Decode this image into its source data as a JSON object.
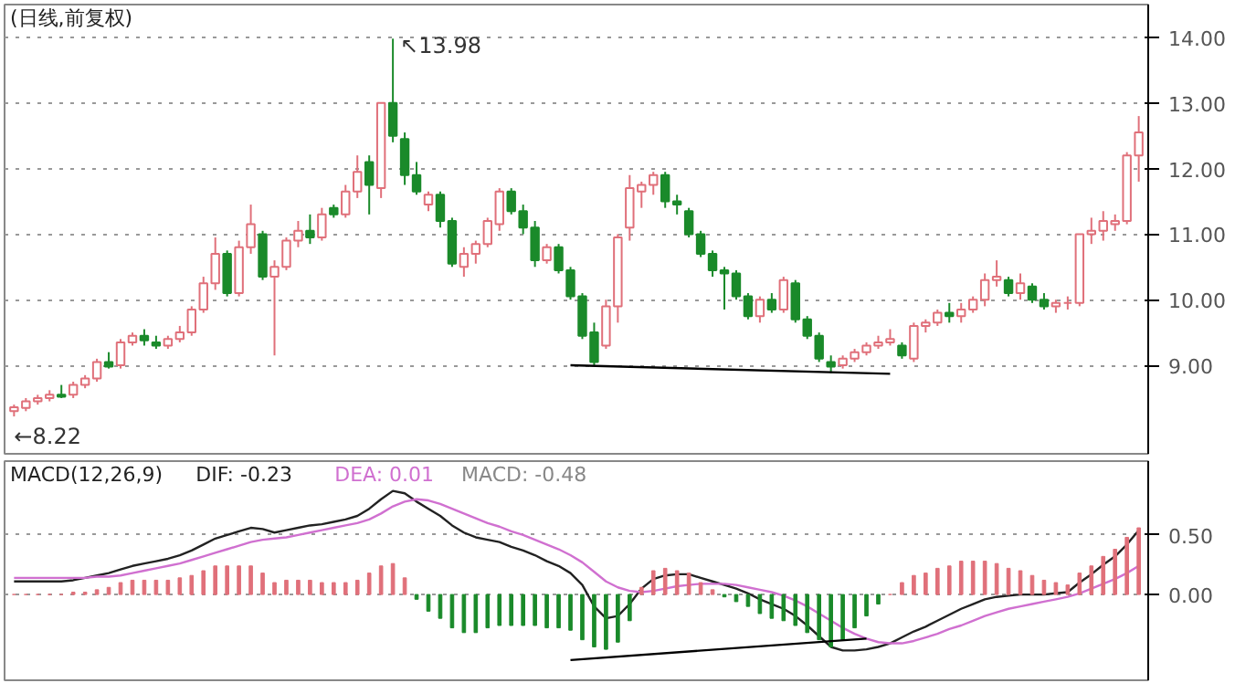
{
  "chart_data": [
    {
      "type": "candlestick",
      "title": "(日线,前复权)",
      "categories": [
        null,
        null,
        null,
        null,
        null,
        null,
        null,
        null,
        null,
        null,
        null,
        null,
        null,
        null,
        null,
        null,
        null,
        null,
        null,
        null,
        null,
        null,
        null,
        null,
        null,
        null,
        null,
        null,
        null,
        null,
        null,
        null,
        null,
        null,
        null,
        null,
        null,
        null,
        null,
        null,
        null,
        null,
        null,
        null,
        null,
        null,
        null,
        null,
        null,
        null,
        null,
        null,
        null,
        null,
        null,
        null,
        null,
        null,
        null,
        null,
        null,
        null,
        null,
        null,
        null,
        null,
        null,
        null,
        null,
        null,
        null,
        null,
        null,
        null,
        null,
        null,
        null,
        null,
        null,
        null,
        null,
        null,
        null,
        null,
        null,
        null,
        null,
        null,
        null,
        null,
        null,
        null,
        null,
        null,
        null,
        null
      ],
      "ohlc": [
        [
          8.3,
          8.4,
          8.22,
          8.36
        ],
        [
          8.35,
          8.5,
          8.3,
          8.45
        ],
        [
          8.45,
          8.55,
          8.4,
          8.5
        ],
        [
          8.5,
          8.62,
          8.45,
          8.55
        ],
        [
          8.55,
          8.7,
          8.5,
          8.52
        ],
        [
          8.55,
          8.75,
          8.5,
          8.7
        ],
        [
          8.7,
          8.85,
          8.65,
          8.8
        ],
        [
          8.8,
          9.1,
          8.75,
          9.05
        ],
        [
          9.05,
          9.2,
          8.95,
          8.98
        ],
        [
          9.0,
          9.4,
          8.95,
          9.35
        ],
        [
          9.35,
          9.5,
          9.3,
          9.45
        ],
        [
          9.45,
          9.55,
          9.3,
          9.38
        ],
        [
          9.35,
          9.45,
          9.25,
          9.3
        ],
        [
          9.3,
          9.45,
          9.25,
          9.4
        ],
        [
          9.4,
          9.6,
          9.35,
          9.5
        ],
        [
          9.5,
          9.9,
          9.45,
          9.85
        ],
        [
          9.85,
          10.35,
          9.8,
          10.25
        ],
        [
          10.25,
          10.95,
          10.15,
          10.7
        ],
        [
          10.7,
          10.75,
          10.05,
          10.1
        ],
        [
          10.1,
          10.9,
          10.05,
          10.8
        ],
        [
          10.8,
          11.45,
          10.7,
          11.15
        ],
        [
          11.0,
          11.05,
          10.3,
          10.35
        ],
        [
          10.35,
          10.6,
          9.15,
          10.5
        ],
        [
          10.5,
          10.95,
          10.45,
          10.9
        ],
        [
          10.9,
          11.2,
          10.8,
          11.05
        ],
        [
          11.05,
          11.3,
          10.85,
          10.95
        ],
        [
          10.95,
          11.4,
          10.9,
          11.3
        ],
        [
          11.4,
          11.45,
          11.25,
          11.3
        ],
        [
          11.3,
          11.75,
          11.25,
          11.65
        ],
        [
          11.65,
          12.2,
          11.55,
          11.95
        ],
        [
          12.1,
          12.2,
          11.3,
          11.75
        ],
        [
          11.7,
          13.0,
          11.55,
          13.0
        ],
        [
          13.0,
          13.98,
          12.4,
          12.5
        ],
        [
          12.45,
          12.55,
          11.75,
          11.9
        ],
        [
          11.9,
          12.1,
          11.6,
          11.65
        ],
        [
          11.45,
          11.65,
          11.35,
          11.6
        ],
        [
          11.6,
          11.65,
          11.1,
          11.2
        ],
        [
          11.2,
          11.25,
          10.5,
          10.55
        ],
        [
          10.5,
          10.8,
          10.35,
          10.7
        ],
        [
          10.7,
          10.9,
          10.55,
          10.85
        ],
        [
          10.85,
          11.25,
          10.8,
          11.2
        ],
        [
          11.15,
          11.7,
          11.05,
          11.65
        ],
        [
          11.65,
          11.7,
          11.3,
          11.35
        ],
        [
          11.35,
          11.45,
          11.0,
          11.1
        ],
        [
          11.1,
          11.2,
          10.5,
          10.6
        ],
        [
          10.6,
          10.85,
          10.55,
          10.8
        ],
        [
          10.8,
          10.85,
          10.4,
          10.45
        ],
        [
          10.45,
          10.5,
          10.0,
          10.05
        ],
        [
          10.05,
          10.1,
          9.4,
          9.45
        ],
        [
          9.5,
          9.65,
          9.0,
          9.05
        ],
        [
          9.3,
          10.0,
          9.25,
          9.9
        ],
        [
          9.9,
          11.0,
          9.65,
          10.95
        ],
        [
          11.1,
          11.9,
          10.9,
          11.7
        ],
        [
          11.65,
          11.8,
          11.4,
          11.75
        ],
        [
          11.75,
          11.95,
          11.6,
          11.9
        ],
        [
          11.9,
          11.95,
          11.4,
          11.5
        ],
        [
          11.5,
          11.6,
          11.3,
          11.45
        ],
        [
          11.35,
          11.4,
          10.95,
          11.0
        ],
        [
          11.0,
          11.05,
          10.65,
          10.7
        ],
        [
          10.7,
          10.75,
          10.35,
          10.45
        ],
        [
          10.45,
          10.5,
          9.85,
          10.4
        ],
        [
          10.4,
          10.45,
          10.0,
          10.05
        ],
        [
          10.05,
          10.1,
          9.7,
          9.75
        ],
        [
          9.75,
          10.05,
          9.65,
          10.0
        ],
        [
          10.0,
          10.1,
          9.8,
          9.85
        ],
        [
          9.85,
          10.35,
          9.8,
          10.3
        ],
        [
          10.25,
          10.3,
          9.65,
          9.7
        ],
        [
          9.7,
          9.75,
          9.4,
          9.45
        ],
        [
          9.45,
          9.5,
          9.05,
          9.1
        ],
        [
          9.05,
          9.15,
          8.88,
          8.98
        ],
        [
          9.0,
          9.15,
          8.95,
          9.1
        ],
        [
          9.1,
          9.25,
          9.05,
          9.2
        ],
        [
          9.2,
          9.35,
          9.15,
          9.3
        ],
        [
          9.3,
          9.45,
          9.25,
          9.35
        ],
        [
          9.35,
          9.55,
          9.3,
          9.4
        ],
        [
          9.3,
          9.35,
          9.1,
          9.15
        ],
        [
          9.1,
          9.65,
          9.05,
          9.6
        ],
        [
          9.6,
          9.7,
          9.5,
          9.65
        ],
        [
          9.65,
          9.85,
          9.6,
          9.8
        ],
        [
          9.8,
          9.95,
          9.65,
          9.75
        ],
        [
          9.75,
          9.95,
          9.65,
          9.85
        ],
        [
          9.85,
          10.05,
          9.8,
          10.0
        ],
        [
          10.0,
          10.4,
          9.9,
          10.3
        ],
        [
          10.3,
          10.6,
          10.2,
          10.35
        ],
        [
          10.3,
          10.35,
          10.05,
          10.1
        ],
        [
          10.1,
          10.4,
          10.0,
          10.25
        ],
        [
          10.2,
          10.25,
          9.95,
          10.0
        ],
        [
          10.0,
          10.1,
          9.85,
          9.9
        ],
        [
          9.9,
          10.0,
          9.8,
          9.95
        ],
        [
          9.95,
          10.05,
          9.85,
          9.95
        ],
        [
          9.95,
          11.0,
          9.9,
          11.0
        ],
        [
          11.0,
          11.25,
          10.85,
          11.05
        ],
        [
          11.05,
          11.35,
          10.9,
          11.2
        ],
        [
          11.15,
          11.3,
          11.05,
          11.2
        ],
        [
          11.2,
          12.25,
          11.15,
          12.2
        ],
        [
          12.2,
          12.8,
          11.8,
          12.55
        ]
      ],
      "series": [
        {
          "type": "line",
          "values": [
            null,
            null,
            null,
            null,
            null,
            null,
            null,
            null,
            null,
            null,
            null,
            null,
            null,
            null,
            null,
            null,
            null,
            null,
            null,
            null,
            null,
            null,
            null,
            null,
            null,
            null,
            null,
            null,
            null,
            null,
            null,
            null,
            null,
            null,
            null,
            null,
            null,
            null,
            null,
            null,
            null,
            null,
            null,
            null,
            null,
            null,
            null,
            9.0,
            null,
            null,
            null,
            null,
            null,
            null,
            null,
            null,
            null,
            null,
            null,
            null,
            null,
            null,
            null,
            null,
            null,
            null,
            null,
            null,
            null,
            null,
            null,
            null,
            null,
            null,
            8.87,
            null,
            null,
            null,
            null,
            null,
            null,
            null,
            null,
            null,
            null,
            null,
            null,
            null,
            null,
            null,
            null,
            null,
            null,
            null,
            null,
            null
          ],
          "color": "#000000"
        }
      ],
      "ylim": [
        7.65,
        14.5
      ],
      "yticks": [
        {
          "value": 9,
          "label": "9.00"
        },
        {
          "value": 10,
          "label": "10.00"
        },
        {
          "value": 11,
          "label": "11.00"
        },
        {
          "value": 12,
          "label": "12.00"
        },
        {
          "value": 13,
          "label": "13.00"
        },
        {
          "value": 14,
          "label": "14.00"
        }
      ],
      "grid": "y",
      "annotations": [
        "↖13.98",
        "←8.22"
      ]
    },
    {
      "type": "line",
      "title": "MACD(12,26,9)",
      "categories": [
        null,
        null,
        null,
        null,
        null,
        null,
        null,
        null,
        null,
        null,
        null,
        null,
        null,
        null,
        null,
        null,
        null,
        null,
        null,
        null,
        null,
        null,
        null,
        null,
        null,
        null,
        null,
        null,
        null,
        null,
        null,
        null,
        null,
        null,
        null,
        null,
        null,
        null,
        null,
        null,
        null,
        null,
        null,
        null,
        null,
        null,
        null,
        null,
        null,
        null,
        null,
        null,
        null,
        null,
        null,
        null,
        null,
        null,
        null,
        null,
        null,
        null,
        null,
        null,
        null,
        null,
        null,
        null,
        null,
        null,
        null,
        null,
        null,
        null,
        null,
        null,
        null,
        null,
        null,
        null,
        null,
        null,
        null,
        null,
        null,
        null,
        null,
        null,
        null,
        null,
        null,
        null,
        null,
        null,
        null,
        null
      ],
      "series": [
        {
          "name": "DIF: -0.23",
          "color": "#222222",
          "values": [
            0.11,
            0.11,
            0.11,
            0.11,
            0.11,
            0.12,
            0.14,
            0.16,
            0.18,
            0.21,
            0.24,
            0.26,
            0.28,
            0.3,
            0.33,
            0.37,
            0.42,
            0.47,
            0.5,
            0.53,
            0.56,
            0.55,
            0.52,
            0.54,
            0.56,
            0.58,
            0.59,
            0.61,
            0.63,
            0.66,
            0.72,
            0.8,
            0.87,
            0.85,
            0.78,
            0.72,
            0.66,
            0.58,
            0.52,
            0.48,
            0.46,
            0.44,
            0.4,
            0.37,
            0.33,
            0.28,
            0.24,
            0.18,
            0.08,
            -0.1,
            -0.2,
            -0.18,
            -0.08,
            0.05,
            0.13,
            0.16,
            0.17,
            0.17,
            0.14,
            0.11,
            0.08,
            0.05,
            0.01,
            -0.04,
            -0.08,
            -0.12,
            -0.18,
            -0.26,
            -0.35,
            -0.44,
            -0.47,
            -0.47,
            -0.46,
            -0.44,
            -0.41,
            -0.36,
            -0.31,
            -0.27,
            -0.22,
            -0.17,
            -0.12,
            -0.08,
            -0.04,
            -0.02,
            -0.01,
            0.0,
            0.0,
            0.0,
            0.01,
            0.02,
            0.1,
            0.17,
            0.25,
            0.32,
            0.42,
            0.54
          ]
        },
        {
          "name": "DEA: 0.01",
          "color": "#d070d0",
          "values": [
            0.14,
            0.14,
            0.14,
            0.14,
            0.14,
            0.14,
            0.14,
            0.15,
            0.15,
            0.16,
            0.18,
            0.2,
            0.22,
            0.24,
            0.26,
            0.29,
            0.32,
            0.35,
            0.38,
            0.41,
            0.44,
            0.46,
            0.47,
            0.48,
            0.5,
            0.52,
            0.54,
            0.56,
            0.58,
            0.6,
            0.63,
            0.68,
            0.74,
            0.78,
            0.8,
            0.79,
            0.76,
            0.72,
            0.68,
            0.64,
            0.6,
            0.57,
            0.53,
            0.5,
            0.46,
            0.42,
            0.38,
            0.33,
            0.27,
            0.19,
            0.11,
            0.06,
            0.03,
            0.02,
            0.03,
            0.05,
            0.07,
            0.08,
            0.09,
            0.09,
            0.09,
            0.08,
            0.06,
            0.04,
            0.02,
            -0.01,
            -0.05,
            -0.1,
            -0.16,
            -0.22,
            -0.28,
            -0.33,
            -0.37,
            -0.4,
            -0.41,
            -0.41,
            -0.39,
            -0.36,
            -0.33,
            -0.29,
            -0.26,
            -0.22,
            -0.18,
            -0.15,
            -0.12,
            -0.1,
            -0.08,
            -0.06,
            -0.04,
            -0.02,
            0.01,
            0.05,
            0.09,
            0.13,
            0.18,
            0.24
          ]
        },
        {
          "type": "bar",
          "colors": [
            "#e0707a",
            "#e0707a",
            "#e0707a",
            "#e0707a",
            "#e0707a",
            "#e0707a",
            "#e0707a",
            "#e0707a",
            "#e0707a",
            "#e0707a",
            "#e0707a",
            "#e0707a",
            "#e0707a",
            "#e0707a",
            "#e0707a",
            "#e0707a",
            "#e0707a",
            "#e0707a",
            "#e0707a",
            "#e0707a",
            "#e0707a",
            "#e0707a",
            "#e0707a",
            "#e0707a",
            "#e0707a",
            "#e0707a",
            "#e0707a",
            "#e0707a",
            "#e0707a",
            "#e0707a",
            "#e0707a",
            "#e0707a",
            "#e0707a",
            "#e0707a",
            "#1a8a2a",
            "#1a8a2a",
            "#1a8a2a",
            "#1a8a2a",
            "#1a8a2a",
            "#1a8a2a",
            "#1a8a2a",
            "#1a8a2a",
            "#1a8a2a",
            "#1a8a2a",
            "#1a8a2a",
            "#1a8a2a",
            "#1a8a2a",
            "#1a8a2a",
            "#1a8a2a",
            "#1a8a2a",
            "#1a8a2a",
            "#1a8a2a",
            "#1a8a2a",
            "#e0707a",
            "#e0707a",
            "#e0707a",
            "#e0707a",
            "#e0707a",
            "#e0707a",
            "#e0707a",
            "#1a8a2a",
            "#1a8a2a",
            "#1a8a2a",
            "#1a8a2a",
            "#1a8a2a",
            "#1a8a2a",
            "#1a8a2a",
            "#1a8a2a",
            "#1a8a2a",
            "#1a8a2a",
            "#1a8a2a",
            "#1a8a2a",
            "#1a8a2a",
            "#1a8a2a",
            "#e0707a",
            "#e0707a",
            "#e0707a",
            "#e0707a",
            "#e0707a",
            "#e0707a",
            "#e0707a",
            "#e0707a",
            "#e0707a",
            "#e0707a",
            "#e0707a",
            "#e0707a",
            "#e0707a",
            "#e0707a",
            "#e0707a",
            "#e0707a",
            "#e0707a",
            "#e0707a",
            "#e0707a",
            "#e0707a",
            "#e0707a",
            "#e0707a"
          ],
          "values": [
            0,
            0,
            0,
            0,
            0,
            0.02,
            0.02,
            0.04,
            0.06,
            0.1,
            0.12,
            0.12,
            0.12,
            0.12,
            0.14,
            0.16,
            0.2,
            0.24,
            0.24,
            0.24,
            0.24,
            0.18,
            0.1,
            0.12,
            0.12,
            0.12,
            0.1,
            0.1,
            0.1,
            0.12,
            0.18,
            0.24,
            0.26,
            0.14,
            -0.04,
            -0.14,
            -0.2,
            -0.28,
            -0.32,
            -0.32,
            -0.28,
            -0.26,
            -0.26,
            -0.26,
            -0.26,
            -0.28,
            -0.28,
            -0.3,
            -0.38,
            -0.44,
            -0.46,
            -0.4,
            -0.22,
            0.06,
            0.2,
            0.22,
            0.2,
            0.18,
            0.1,
            0.04,
            -0.02,
            -0.06,
            -0.1,
            -0.16,
            -0.2,
            -0.22,
            -0.26,
            -0.32,
            -0.38,
            -0.44,
            -0.38,
            -0.28,
            -0.18,
            -0.08,
            0.0,
            0.1,
            0.16,
            0.18,
            0.22,
            0.24,
            0.28,
            0.28,
            0.28,
            0.26,
            0.22,
            0.2,
            0.16,
            0.12,
            0.1,
            0.08,
            0.18,
            0.24,
            0.32,
            0.38,
            0.48,
            0.56
          ]
        },
        {
          "type": "line",
          "values": [
            null,
            null,
            null,
            null,
            null,
            null,
            null,
            null,
            null,
            null,
            null,
            null,
            null,
            null,
            null,
            null,
            null,
            null,
            null,
            null,
            null,
            null,
            null,
            null,
            null,
            null,
            null,
            null,
            null,
            null,
            null,
            null,
            null,
            null,
            null,
            null,
            null,
            null,
            null,
            null,
            null,
            null,
            null,
            null,
            null,
            null,
            null,
            -0.55,
            null,
            null,
            null,
            null,
            null,
            null,
            null,
            null,
            null,
            null,
            null,
            null,
            null,
            null,
            null,
            null,
            null,
            null,
            null,
            null,
            null,
            null,
            null,
            null,
            -0.37,
            null,
            null,
            null,
            null,
            null,
            null,
            null,
            null,
            null,
            null,
            null,
            null,
            null,
            null,
            null,
            null,
            null,
            null,
            null,
            null,
            null,
            null,
            null
          ],
          "color": "#000000"
        }
      ],
      "ylim": [
        -0.72,
        1.12
      ],
      "yticks": [
        {
          "value": 0,
          "label": "0.00"
        },
        {
          "value": 0.5,
          "label": "0.50"
        }
      ],
      "grid": "y",
      "legend": "top left",
      "annotations": [
        "MACD: -0.48"
      ]
    }
  ]
}
